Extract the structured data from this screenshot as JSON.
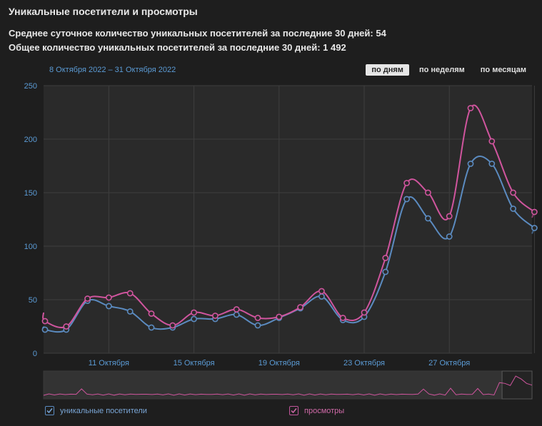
{
  "header": {
    "title": "Уникальные посетители и просмотры",
    "stat_avg": "Среднее суточное количество уникальных посетителей за последние 30 дней: 54",
    "stat_total": "Общее количество уникальных посетителей за последние 30 дней: 1 492"
  },
  "range_label": "8 Октября 2022 – 31 Октября 2022",
  "period_buttons": {
    "days": "по дням",
    "weeks": "по неделям",
    "months": "по месяцам"
  },
  "legend": {
    "visitors": "уникальные посетители",
    "views": "просмотры"
  },
  "colors": {
    "visitors": "#5b8bc0",
    "views": "#d0559e",
    "axis_text": "#5b9bd5",
    "grid": "#3e3e3e",
    "plot_bg": "#2a2a2a"
  },
  "chart_data": {
    "type": "line",
    "title": "Уникальные посетители и просмотры",
    "x": [
      "8 Октября",
      "9 Октября",
      "10 Октября",
      "11 Октября",
      "12 Октября",
      "13 Октября",
      "14 Октября",
      "15 Октября",
      "16 Октября",
      "17 Октября",
      "18 Октября",
      "19 Октября",
      "20 Октября",
      "21 Октября",
      "22 Октября",
      "23 Октября",
      "24 Октября",
      "25 Октября",
      "26 Октября",
      "27 Октября",
      "28 Октября",
      "29 Октября",
      "30 Октября",
      "31 Октября"
    ],
    "x_tick_labels": [
      "11 Октября",
      "15 Октября",
      "19 Октября",
      "23 Октября",
      "27 Октября"
    ],
    "ylim": [
      0,
      250
    ],
    "y_ticks": [
      0,
      50,
      100,
      150,
      200,
      250
    ],
    "grid": true,
    "legend_position": "bottom",
    "series": [
      {
        "name": "уникальные посетители",
        "values": [
          22,
          22,
          49,
          44,
          39,
          24,
          24,
          32,
          32,
          36,
          26,
          33,
          42,
          53,
          31,
          34,
          76,
          144,
          126,
          109,
          177,
          177,
          135,
          117
        ]
      },
      {
        "name": "просмотры",
        "values": [
          30,
          25,
          51,
          52,
          56,
          37,
          26,
          38,
          35,
          41,
          33,
          34,
          43,
          58,
          33,
          38,
          89,
          159,
          150,
          128,
          229,
          198,
          150,
          132
        ]
      }
    ]
  }
}
